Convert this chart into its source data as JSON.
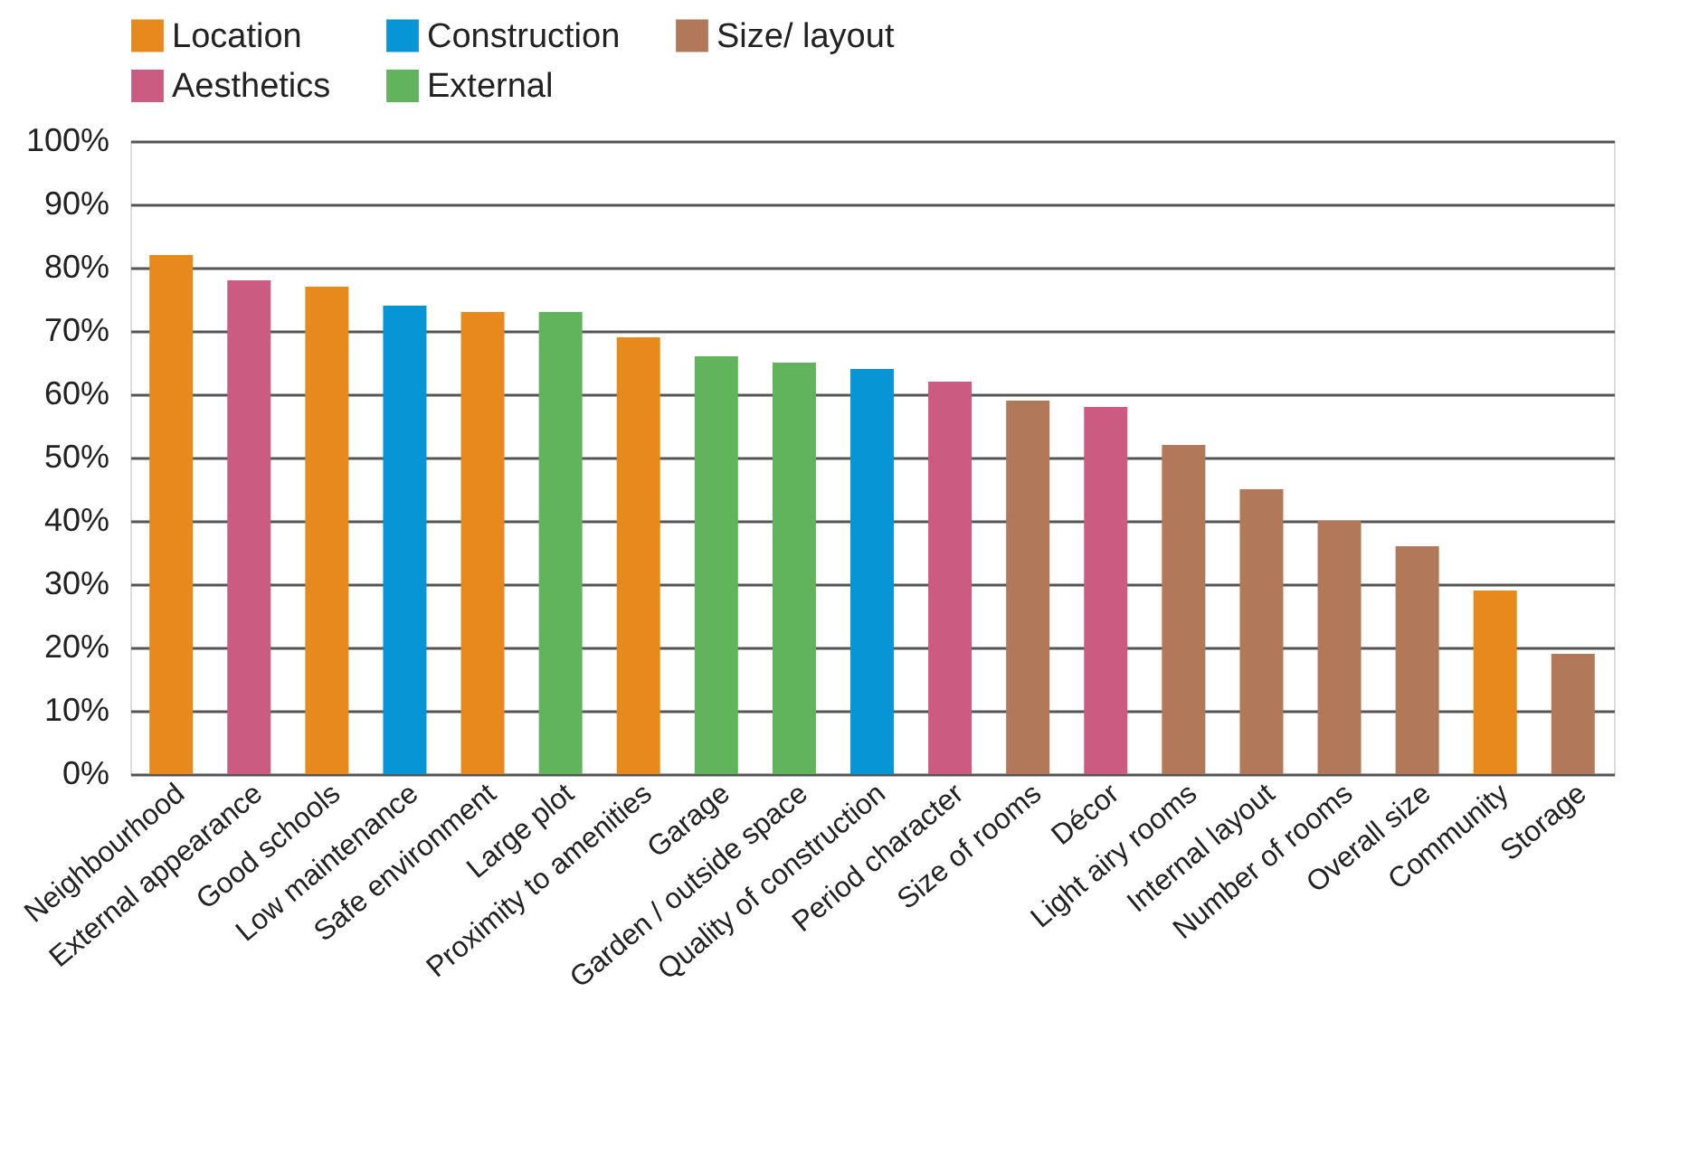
{
  "chart_data": {
    "type": "bar",
    "categories": [
      "Neighbourhood",
      "External appearance",
      "Good schools",
      "Low maintenance",
      "Safe environment",
      "Large plot",
      "Proximity to amenities",
      "Garage",
      "Garden / outside space",
      "Quality of construction",
      "Period character",
      "Size of rooms",
      "Décor",
      "Light airy rooms",
      "Internal layout",
      "Number of rooms",
      "Overall size",
      "Community",
      "Storage"
    ],
    "series": [
      {
        "name": "Location",
        "color": "#e8891d",
        "values": [
          82,
          null,
          77,
          null,
          73,
          null,
          69,
          null,
          null,
          null,
          null,
          null,
          null,
          null,
          null,
          null,
          null,
          29,
          null
        ]
      },
      {
        "name": "Construction",
        "color": "#0795d6",
        "values": [
          null,
          null,
          null,
          74,
          null,
          null,
          null,
          null,
          null,
          64,
          null,
          null,
          null,
          null,
          null,
          null,
          null,
          null,
          null
        ]
      },
      {
        "name": "Size/ layout",
        "color": "#b2785a",
        "values": [
          null,
          null,
          null,
          null,
          null,
          null,
          null,
          null,
          null,
          null,
          null,
          59,
          null,
          52,
          45,
          40,
          36,
          null,
          19
        ]
      },
      {
        "name": "Aesthetics",
        "color": "#cb5b80",
        "values": [
          null,
          78,
          null,
          null,
          null,
          null,
          null,
          null,
          null,
          null,
          62,
          null,
          58,
          null,
          null,
          null,
          null,
          null,
          null
        ]
      },
      {
        "name": "External",
        "color": "#62b45c",
        "values": [
          null,
          null,
          null,
          null,
          null,
          73,
          null,
          66,
          65,
          null,
          null,
          null,
          null,
          null,
          null,
          null,
          null,
          null,
          null
        ]
      }
    ],
    "ylim": [
      0,
      100
    ],
    "yticks": [
      {
        "value": 0,
        "label": "0%"
      },
      {
        "value": 10,
        "label": "10%"
      },
      {
        "value": 20,
        "label": "20%"
      },
      {
        "value": 30,
        "label": "30%"
      },
      {
        "value": 40,
        "label": "40%"
      },
      {
        "value": 50,
        "label": "50%"
      },
      {
        "value": 60,
        "label": "60%"
      },
      {
        "value": 70,
        "label": "70%"
      },
      {
        "value": 80,
        "label": "80%"
      },
      {
        "value": 90,
        "label": "90%"
      },
      {
        "value": 100,
        "label": "100%"
      }
    ],
    "grid": "y",
    "legend": "top"
  }
}
